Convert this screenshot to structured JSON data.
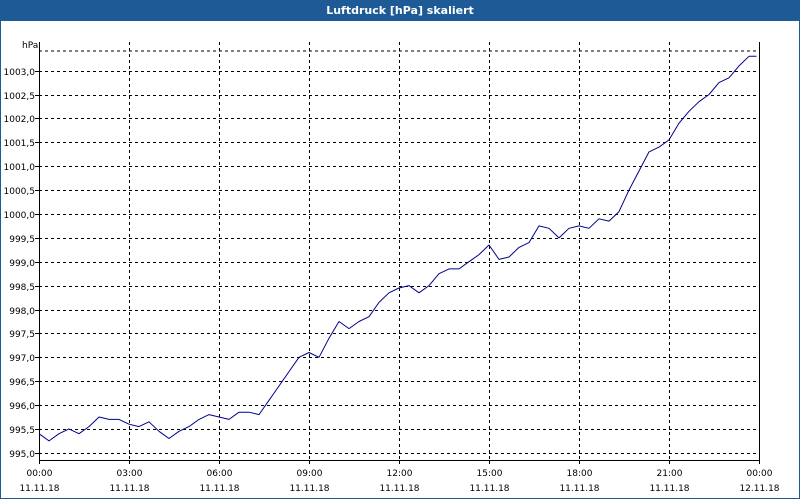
{
  "window": {
    "title": "Luftdruck [hPa] skaliert"
  },
  "chart_data": {
    "type": "line",
    "title": "Luftdruck [hPa] skaliert",
    "ylabel": "hPa",
    "xlabel": "",
    "grid": true,
    "ylim": [
      994.85,
      1003.6
    ],
    "xlim": [
      "11.11.18 00:00",
      "12.11.18 00:00"
    ],
    "yticks": [
      "995,0",
      "995,5",
      "996,0",
      "996,5",
      "997,0",
      "997,5",
      "998,0",
      "998,5",
      "999,0",
      "999,5",
      "1000,0",
      "1000,5",
      "1001,0",
      "1001,5",
      "1002,0",
      "1002,5",
      "1003,0"
    ],
    "xticks": [
      {
        "time": "00:00",
        "date": "11.11.18"
      },
      {
        "time": "03:00",
        "date": "11.11.18"
      },
      {
        "time": "06:00",
        "date": "11.11.18"
      },
      {
        "time": "09:00",
        "date": "11.11.18"
      },
      {
        "time": "12:00",
        "date": "11.11.18"
      },
      {
        "time": "15:00",
        "date": "11.11.18"
      },
      {
        "time": "18:00",
        "date": "11.11.18"
      },
      {
        "time": "21:00",
        "date": "11.11.18"
      },
      {
        "time": "00:00",
        "date": "12.11.18"
      }
    ],
    "line_color": "#00008b",
    "series": [
      {
        "x": [
          "00:00",
          "00:20",
          "00:40",
          "01:00",
          "01:20",
          "01:40",
          "02:00",
          "02:20",
          "02:40",
          "03:00",
          "03:20",
          "03:40",
          "04:00",
          "04:20",
          "04:40",
          "05:00",
          "05:20",
          "05:40",
          "06:00",
          "06:20",
          "06:40",
          "07:00",
          "07:20",
          "07:40",
          "08:00",
          "08:20",
          "08:40",
          "09:00",
          "09:20",
          "09:40",
          "10:00",
          "10:20",
          "10:40",
          "11:00",
          "11:20",
          "11:40",
          "12:00",
          "12:20",
          "12:40",
          "13:00",
          "13:20",
          "13:40",
          "14:00",
          "14:20",
          "14:40",
          "15:00",
          "15:20",
          "15:40",
          "16:00",
          "16:20",
          "16:40",
          "17:00",
          "17:20",
          "17:40",
          "18:00",
          "18:20",
          "18:40",
          "19:00",
          "19:20",
          "19:40",
          "20:00",
          "20:20",
          "20:40",
          "21:00",
          "21:20",
          "21:40",
          "22:00",
          "22:20",
          "22:40",
          "23:00",
          "23:20",
          "23:40",
          "23:55"
        ],
        "values": [
          995.4,
          995.25,
          995.4,
          995.5,
          995.4,
          995.55,
          995.75,
          995.7,
          995.7,
          995.6,
          995.55,
          995.65,
          995.45,
          995.3,
          995.45,
          995.55,
          995.7,
          995.8,
          995.75,
          995.7,
          995.85,
          995.85,
          995.8,
          996.1,
          996.4,
          996.7,
          997.0,
          997.1,
          997.0,
          997.4,
          997.75,
          997.6,
          997.75,
          997.85,
          998.15,
          998.35,
          998.45,
          998.5,
          998.35,
          998.5,
          998.75,
          998.85,
          998.85,
          999.0,
          999.15,
          999.35,
          999.05,
          999.1,
          999.3,
          999.4,
          999.75,
          999.7,
          999.5,
          999.7,
          999.75,
          999.7,
          999.9,
          999.85,
          1000.05,
          1000.5,
          1000.9,
          1001.3,
          1001.4,
          1001.55,
          1001.9,
          1002.15,
          1002.35,
          1002.5,
          1002.75,
          1002.85,
          1003.1,
          1003.3,
          1003.3
        ]
      }
    ]
  }
}
